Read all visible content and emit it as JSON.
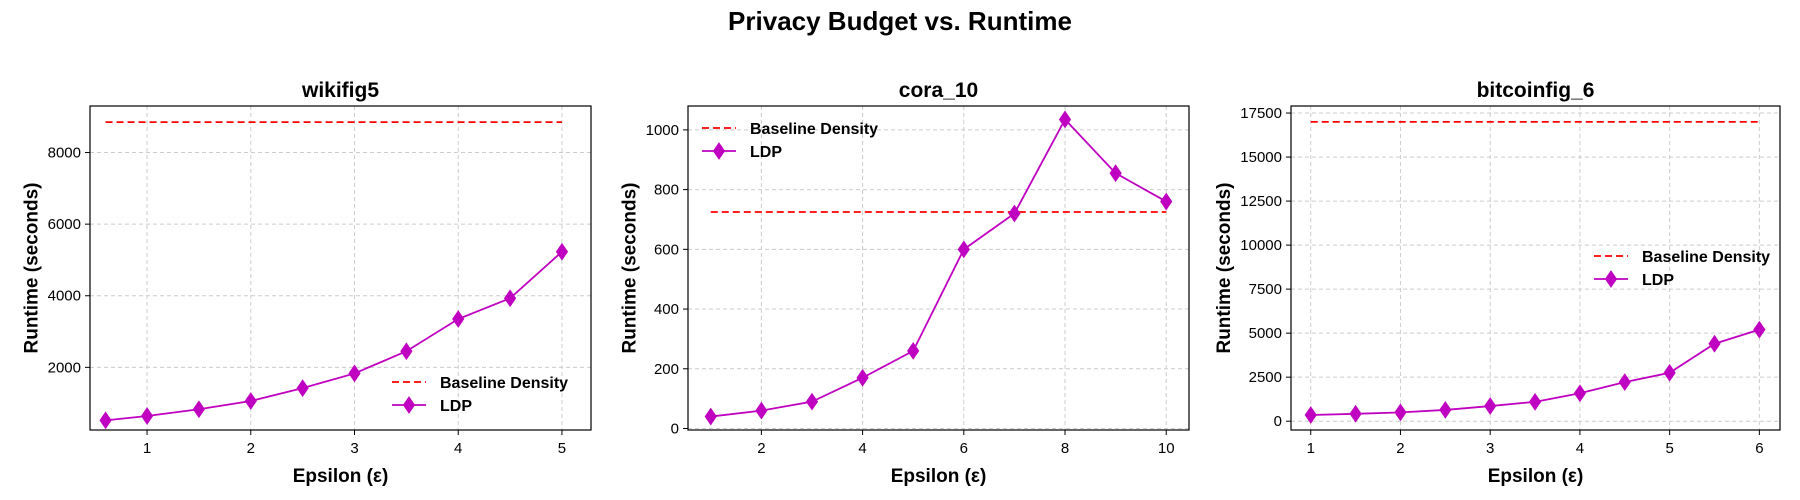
{
  "figure_title": "Privacy Budget vs. Runtime",
  "chart_data": [
    {
      "type": "line",
      "title": "wikifig5",
      "xlabel": "Epsilon (ε)",
      "ylabel": "Runtime (seconds)",
      "xlim": [
        0.45,
        5.28
      ],
      "ylim": [
        250,
        9300
      ],
      "xticks": [
        1,
        2,
        3,
        4,
        5
      ],
      "yticks": [
        2000,
        4000,
        6000,
        8000
      ],
      "grid": true,
      "legend_position": "lower-right",
      "series": [
        {
          "name": "Baseline Density",
          "style": "dashed",
          "color": "#ff0000",
          "x": [
            0.6,
            5.0
          ],
          "y": [
            8850,
            8850
          ]
        },
        {
          "name": "LDP",
          "style": "solid-diamond",
          "color": "#c000c0",
          "x": [
            0.6,
            1.0,
            1.5,
            2.0,
            2.5,
            3.0,
            3.5,
            4.0,
            4.5,
            5.0
          ],
          "y": [
            520,
            640,
            830,
            1060,
            1420,
            1830,
            2450,
            3350,
            3930,
            5230
          ]
        }
      ]
    },
    {
      "type": "line",
      "title": "cora_10",
      "xlabel": "Epsilon (ε)",
      "ylabel": "Runtime (seconds)",
      "xlim": [
        0.55,
        10.45
      ],
      "ylim": [
        -5,
        1080
      ],
      "xticks": [
        2,
        4,
        6,
        8,
        10
      ],
      "yticks": [
        0,
        200,
        400,
        600,
        800,
        1000
      ],
      "grid": true,
      "legend_position": "upper-left",
      "series": [
        {
          "name": "Baseline Density",
          "style": "dashed",
          "color": "#ff0000",
          "x": [
            1,
            10
          ],
          "y": [
            725,
            725
          ]
        },
        {
          "name": "LDP",
          "style": "solid-diamond",
          "color": "#c000c0",
          "x": [
            1,
            2,
            3,
            4,
            5,
            6,
            7,
            8,
            9,
            10
          ],
          "y": [
            40,
            60,
            90,
            170,
            260,
            600,
            720,
            1035,
            855,
            760
          ]
        }
      ]
    },
    {
      "type": "line",
      "title": "bitcoinfig_6",
      "xlabel": "Epsilon (ε)",
      "ylabel": "Runtime (seconds)",
      "xlim": [
        0.78,
        6.23
      ],
      "ylim": [
        -500,
        17900
      ],
      "xticks": [
        1,
        2,
        3,
        4,
        5,
        6
      ],
      "yticks": [
        0,
        2500,
        5000,
        7500,
        10000,
        12500,
        15000,
        17500
      ],
      "grid": true,
      "legend_position": "center-right",
      "series": [
        {
          "name": "Baseline Density",
          "style": "dashed",
          "color": "#ff0000",
          "x": [
            1,
            6
          ],
          "y": [
            17000,
            17000
          ]
        },
        {
          "name": "LDP",
          "style": "solid-diamond",
          "color": "#c000c0",
          "x": [
            1,
            1.5,
            2,
            2.5,
            3,
            3.5,
            4,
            4.5,
            5,
            5.5,
            6
          ],
          "y": [
            350,
            420,
            500,
            640,
            860,
            1100,
            1590,
            2220,
            2750,
            4400,
            5200
          ]
        }
      ]
    }
  ]
}
